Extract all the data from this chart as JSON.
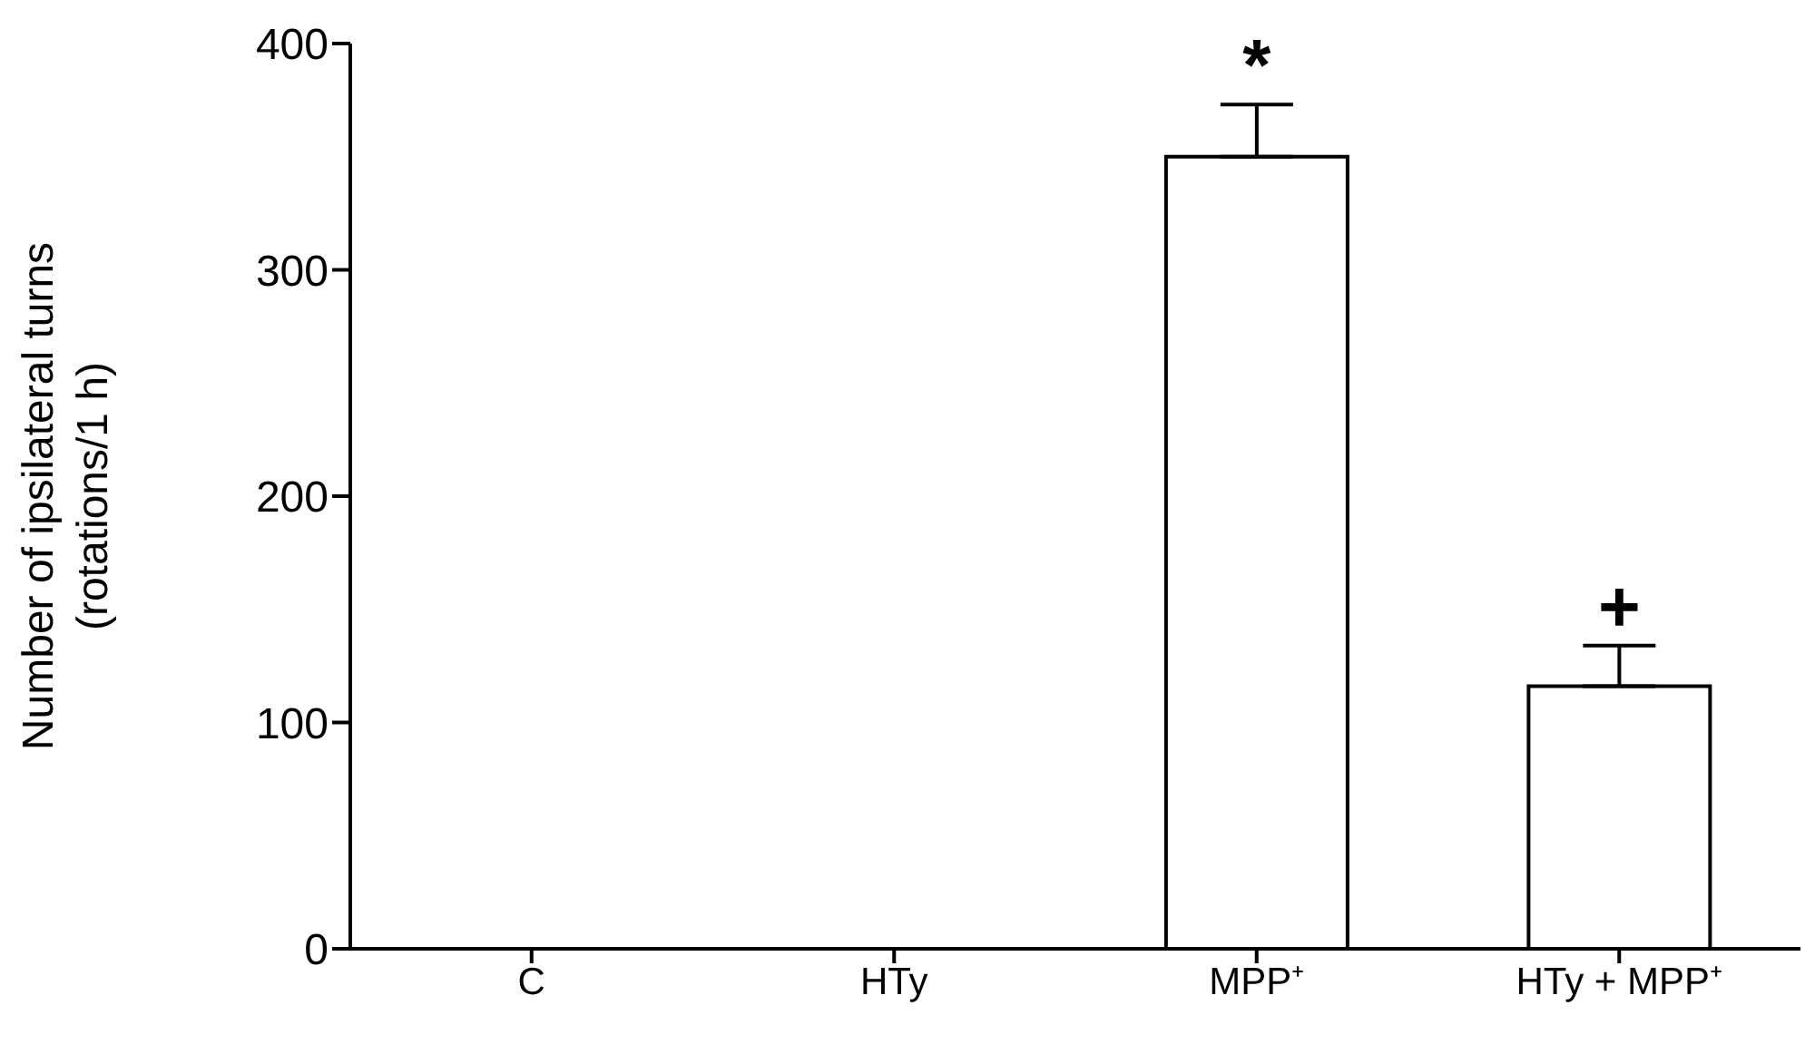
{
  "chart_data": {
    "type": "bar",
    "categories": [
      "C",
      "HTy",
      "MPP⁺",
      "HTy + MPP⁺"
    ],
    "values": [
      0,
      0,
      350,
      116
    ],
    "color": "#ffffff",
    "errors": [
      null,
      null,
      [
        350,
        373
      ],
      [
        116,
        134
      ]
    ],
    "ylabel": "Number of ipsilateral turns\n(rotations/1 h)",
    "ylim": [
      0,
      400
    ],
    "yticks": [
      0,
      100,
      200,
      300,
      400
    ],
    "annotations": [
      {
        "text": "*",
        "x": "MPP⁺",
        "y": 373
      },
      {
        "text": "+",
        "x": "HTy + MPP⁺",
        "y": 134
      }
    ],
    "grid": false,
    "legend": false
  }
}
